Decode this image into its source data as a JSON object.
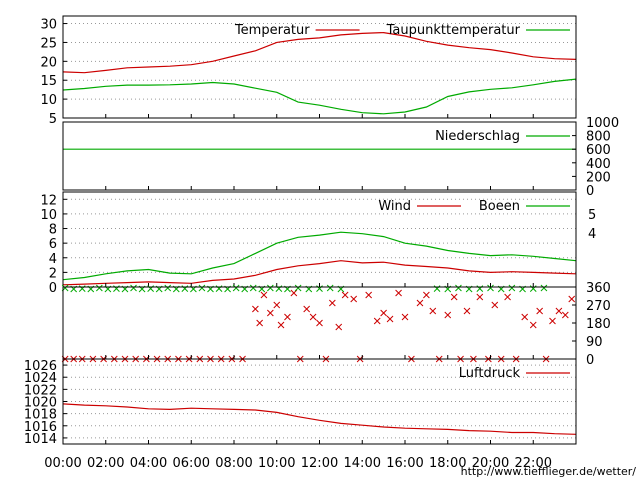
{
  "chart_data": [
    {
      "type": "line",
      "ylim": [
        5,
        32
      ],
      "yticks": [
        5,
        10,
        15,
        20,
        25,
        30
      ],
      "grid": true,
      "legend_position": "top-right",
      "series": [
        {
          "name": "Temperatur",
          "color": "#cc0000",
          "x": [
            0,
            1,
            2,
            3,
            4,
            5,
            6,
            7,
            8,
            9,
            10,
            11,
            12,
            13,
            14,
            15,
            16,
            17,
            18,
            19,
            20,
            21,
            22,
            23,
            24
          ],
          "values": [
            17.2,
            17.0,
            17.6,
            18.3,
            18.5,
            18.7,
            19.1,
            20.0,
            21.4,
            22.8,
            25.0,
            25.8,
            26.2,
            27.0,
            27.4,
            27.6,
            26.7,
            25.3,
            24.3,
            23.6,
            23.1,
            22.2,
            21.2,
            20.7,
            20.5
          ]
        },
        {
          "name": "Taupunkttemperatur",
          "color": "#00aa00",
          "x": [
            0,
            1,
            2,
            3,
            4,
            5,
            6,
            7,
            8,
            9,
            10,
            11,
            12,
            13,
            14,
            15,
            16,
            17,
            18,
            19,
            20,
            21,
            22,
            23,
            24
          ],
          "values": [
            12.4,
            12.8,
            13.4,
            13.7,
            13.7,
            13.8,
            14.0,
            14.4,
            14.0,
            12.9,
            11.8,
            9.2,
            8.4,
            7.3,
            6.4,
            6.1,
            6.6,
            7.9,
            10.7,
            11.9,
            12.6,
            13.0,
            13.8,
            14.7,
            15.3
          ]
        }
      ]
    },
    {
      "type": "line",
      "ylim": [
        0,
        1000
      ],
      "yticks_right": [
        0,
        200,
        400,
        600,
        800,
        1000
      ],
      "grid": false,
      "series": [
        {
          "name": "Niederschlag",
          "color": "#00aa00",
          "x": [
            0,
            24
          ],
          "values": [
            600,
            600
          ]
        }
      ]
    },
    {
      "type": "line",
      "ylim": [
        0,
        13
      ],
      "yticks": [
        0,
        2,
        4,
        6,
        8,
        10,
        12
      ],
      "yticks_right_labels": [
        "4",
        "5"
      ],
      "grid": true,
      "series": [
        {
          "name": "Wind",
          "color": "#cc0000",
          "x": [
            0,
            1,
            2,
            3,
            4,
            5,
            6,
            7,
            8,
            9,
            10,
            11,
            12,
            13,
            14,
            15,
            16,
            17,
            18,
            19,
            20,
            21,
            22,
            23,
            24
          ],
          "values": [
            0.3,
            0.4,
            0.5,
            0.6,
            0.7,
            0.6,
            0.5,
            0.9,
            1.1,
            1.6,
            2.4,
            2.9,
            3.2,
            3.6,
            3.3,
            3.4,
            3.0,
            2.8,
            2.6,
            2.2,
            2.0,
            2.1,
            2.0,
            1.9,
            1.8
          ]
        },
        {
          "name": "Boeen",
          "color": "#00aa00",
          "x": [
            0,
            1,
            2,
            3,
            4,
            5,
            6,
            7,
            8,
            9,
            10,
            11,
            12,
            13,
            14,
            15,
            16,
            17,
            18,
            19,
            20,
            21,
            22,
            23,
            24
          ],
          "values": [
            1.0,
            1.3,
            1.8,
            2.2,
            2.4,
            1.9,
            1.8,
            2.6,
            3.2,
            4.6,
            6.0,
            6.8,
            7.1,
            7.5,
            7.3,
            6.9,
            6.0,
            5.6,
            5.0,
            4.6,
            4.3,
            4.4,
            4.2,
            3.9,
            3.6
          ]
        }
      ]
    },
    {
      "type": "scatter",
      "ylim": [
        0,
        360
      ],
      "yticks_right": [
        0,
        90,
        180,
        270,
        360
      ],
      "series": [
        {
          "name": "Windrichtung",
          "color": "#cc0000",
          "x": [
            0.1,
            0.5,
            0.9,
            1.4,
            1.9,
            2.4,
            2.9,
            3.4,
            3.9,
            4.4,
            4.9,
            5.4,
            5.9,
            6.4,
            6.9,
            7.4,
            7.9,
            8.4,
            9.0,
            9.2,
            9.4,
            9.7,
            10.0,
            10.2,
            10.5,
            10.8,
            11.1,
            11.4,
            11.7,
            12.0,
            12.3,
            12.6,
            12.9,
            13.2,
            13.6,
            13.9,
            14.3,
            14.7,
            15.0,
            15.3,
            15.7,
            16.0,
            16.3,
            16.7,
            17.0,
            17.3,
            17.6,
            18.0,
            18.3,
            18.6,
            18.9,
            19.2,
            19.5,
            19.9,
            20.2,
            20.5,
            20.8,
            21.2,
            21.6,
            22.0,
            22.3,
            22.6,
            22.9,
            23.2,
            23.5,
            23.8
          ],
          "values": [
            0,
            0,
            0,
            0,
            0,
            0,
            0,
            0,
            0,
            0,
            0,
            0,
            0,
            0,
            0,
            0,
            0,
            0,
            250,
            180,
            320,
            230,
            270,
            170,
            210,
            330,
            0,
            250,
            210,
            180,
            0,
            280,
            160,
            320,
            300,
            0,
            320,
            190,
            230,
            200,
            330,
            210,
            0,
            280,
            320,
            240,
            0,
            220,
            310,
            0,
            240,
            0,
            310,
            0,
            270,
            0,
            310,
            0,
            210,
            170,
            240,
            0,
            190,
            240,
            220,
            300
          ]
        },
        {
          "name": "Boeenrichtung",
          "color": "#00aa00",
          "x": [
            0.1,
            0.5,
            0.9,
            1.3,
            1.7,
            2.1,
            2.5,
            2.9,
            3.3,
            3.7,
            4.1,
            4.5,
            4.9,
            5.3,
            5.7,
            6.1,
            6.5,
            6.9,
            7.3,
            7.7,
            8.1,
            8.5,
            8.9,
            9.3,
            9.7,
            10.1,
            10.5,
            11.0,
            11.5,
            12.0,
            12.5,
            13.0,
            17.5,
            18.0,
            18.5,
            19.0,
            19.5,
            20.0,
            20.5,
            21.0,
            21.5,
            22.0,
            22.5
          ],
          "values": [
            355,
            350,
            352,
            350,
            355,
            350,
            352,
            350,
            355,
            350,
            352,
            350,
            355,
            350,
            352,
            350,
            355,
            350,
            352,
            350,
            355,
            350,
            355,
            350,
            355,
            352,
            350,
            355,
            350,
            352,
            355,
            350,
            352,
            350,
            355,
            350,
            352,
            355,
            350,
            355,
            350,
            352,
            355
          ]
        }
      ]
    },
    {
      "type": "line",
      "ylim": [
        1013,
        1027
      ],
      "yticks": [
        1014,
        1016,
        1018,
        1020,
        1022,
        1024,
        1026
      ],
      "grid": true,
      "series": [
        {
          "name": "Luftdruck",
          "color": "#cc0000",
          "x": [
            0,
            1,
            2,
            3,
            4,
            5,
            6,
            7,
            8,
            9,
            10,
            11,
            12,
            13,
            14,
            15,
            16,
            17,
            18,
            19,
            20,
            21,
            22,
            23,
            24
          ],
          "values": [
            1019.6,
            1019.4,
            1019.3,
            1019.1,
            1018.8,
            1018.7,
            1018.9,
            1018.8,
            1018.7,
            1018.6,
            1018.2,
            1017.5,
            1016.9,
            1016.4,
            1016.1,
            1015.8,
            1015.6,
            1015.5,
            1015.4,
            1015.2,
            1015.1,
            1014.9,
            1014.9,
            1014.7,
            1014.6
          ]
        }
      ]
    }
  ],
  "x_axis": {
    "ticks": [
      0,
      2,
      4,
      6,
      8,
      10,
      12,
      14,
      16,
      18,
      20,
      22
    ],
    "labels": [
      "00:00",
      "02:00",
      "04:00",
      "06:00",
      "08:00",
      "10:00",
      "12:00",
      "14:00",
      "16:00",
      "18:00",
      "20:00",
      "22:00"
    ],
    "range": [
      0,
      24
    ]
  },
  "credit": "http://www.tiefflieger.de/wetter/"
}
